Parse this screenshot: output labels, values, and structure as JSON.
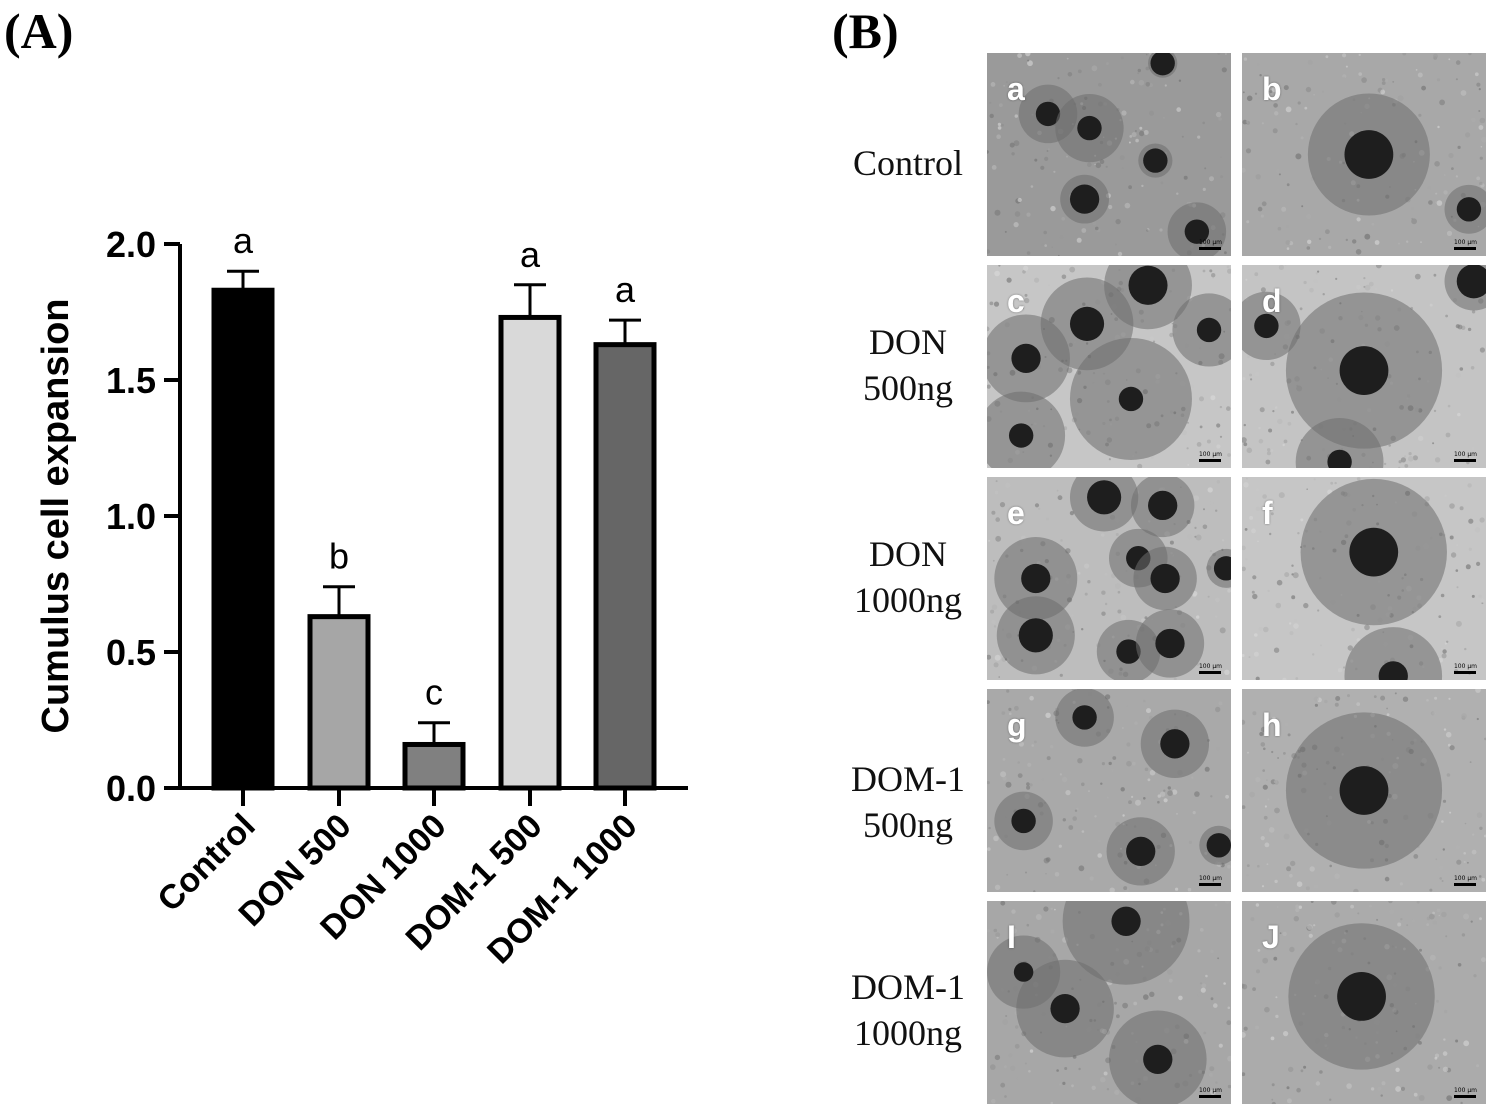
{
  "panels": {
    "a_label": "(A)",
    "b_label": "(B)"
  },
  "chart_data": {
    "type": "bar",
    "categories": [
      "Control",
      "DON 500",
      "DON 1000",
      "DOM-1 500",
      "DOM-1 1000"
    ],
    "values": [
      1.83,
      0.63,
      0.16,
      1.73,
      1.63
    ],
    "errors": [
      0.07,
      0.11,
      0.08,
      0.12,
      0.09
    ],
    "significance": [
      "a",
      "b",
      "c",
      "a",
      "a"
    ],
    "bar_colors": [
      "#000000",
      "#a6a6a6",
      "#808080",
      "#d9d9d9",
      "#666666"
    ],
    "ylabel": "Cumulus cell expansion",
    "xlabel": "",
    "ylim": [
      0,
      2.0
    ],
    "yticks": [
      "0.0",
      "0.5",
      "1.0",
      "1.5",
      "2.0"
    ],
    "ytick_values": [
      0,
      0.5,
      1.0,
      1.5,
      2.0
    ],
    "grid": false
  },
  "micrographs": {
    "rows": [
      {
        "label": "Control",
        "letters": [
          "a",
          "b"
        ]
      },
      {
        "label": "DON\n500ng",
        "letters": [
          "c",
          "d"
        ]
      },
      {
        "label": "DON\n1000ng",
        "letters": [
          "e",
          "f"
        ]
      },
      {
        "label": "DOM-1\n500ng",
        "letters": [
          "g",
          "h"
        ]
      },
      {
        "label": "DOM-1\n1000ng",
        "letters": [
          "I",
          "J"
        ]
      }
    ],
    "scale_text": "100 μm"
  }
}
